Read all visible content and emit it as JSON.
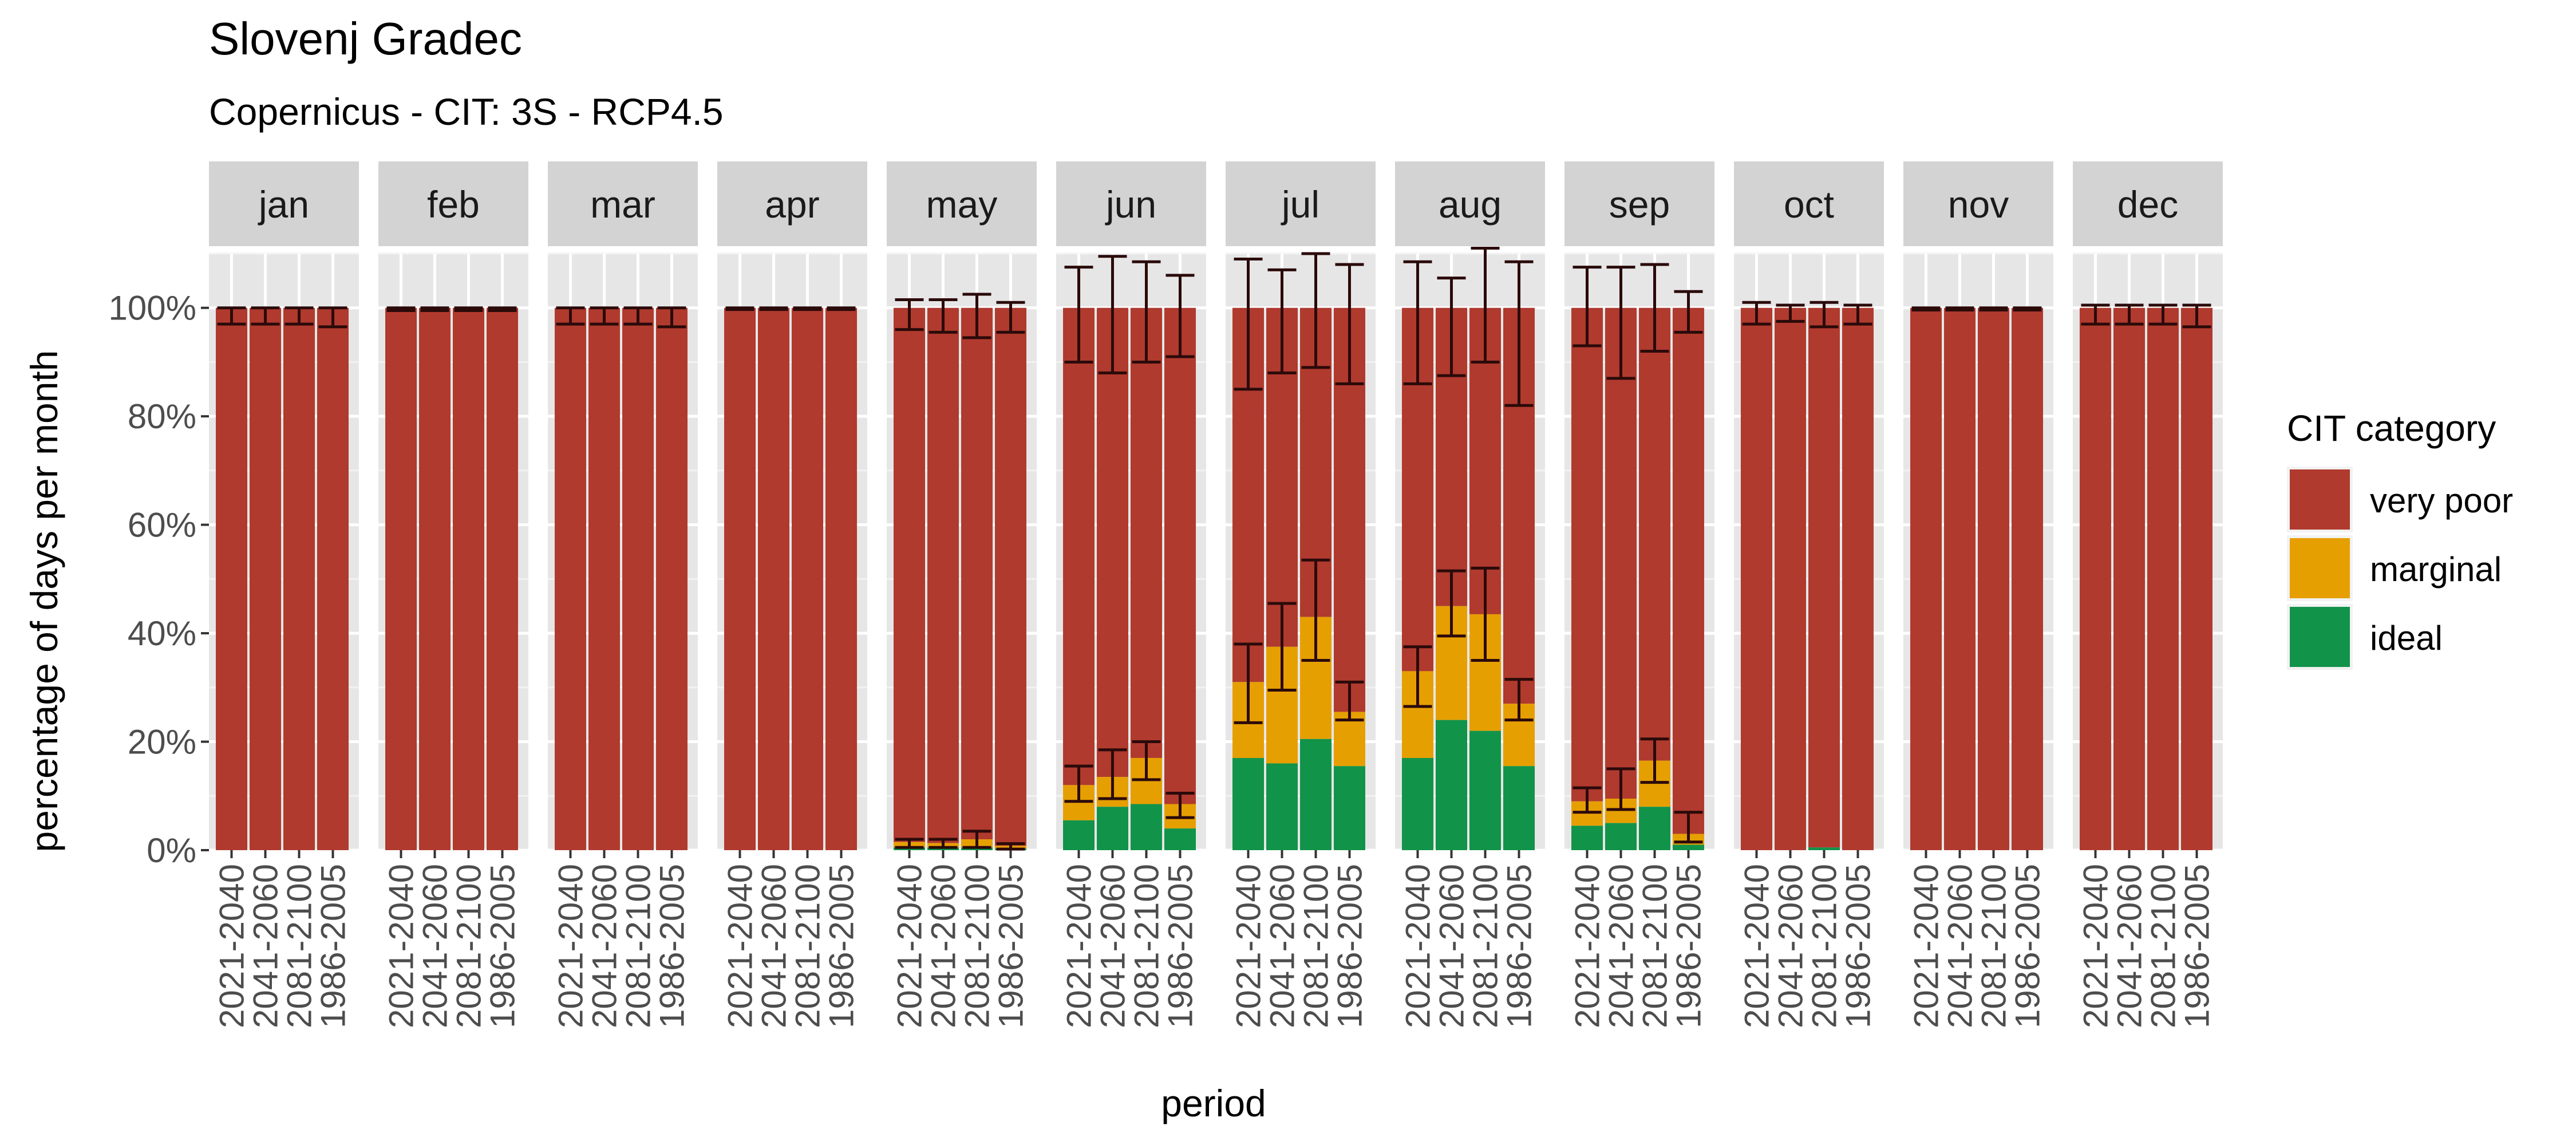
{
  "chart_data": {
    "type": "bar",
    "stacked": true,
    "faceted": true,
    "title": "Slovenj Gradec",
    "subtitle": "Copernicus - CIT: 3S - RCP4.5",
    "xlabel": "period",
    "ylabel": "percentage of days per month",
    "ylim": [
      0,
      110
    ],
    "y_ticks": [
      "0%",
      "20%",
      "40%",
      "60%",
      "80%",
      "100%"
    ],
    "grid": true,
    "legend": {
      "title": "CIT category",
      "position": "right",
      "entries": [
        "very poor",
        "marginal",
        "ideal"
      ]
    },
    "colors": {
      "very poor": "#B03A2E",
      "marginal": "#E69F00",
      "ideal": "#12934A",
      "errorbar": "#2b0a0a",
      "panel": "#E6E6E6",
      "strip": "#D3D3D3"
    },
    "categories": [
      "2021-2040",
      "2041-2060",
      "2081-2100",
      "1986-2005"
    ],
    "panels": [
      {
        "month": "jan",
        "ideal": [
          0,
          0,
          0,
          0
        ],
        "marginal": [
          0,
          0,
          0,
          0
        ],
        "errbars": [
          [
            97,
            100
          ],
          [
            97,
            100
          ],
          [
            97,
            100
          ],
          [
            96.5,
            100
          ]
        ]
      },
      {
        "month": "feb",
        "ideal": [
          0,
          0,
          0,
          0
        ],
        "marginal": [
          0,
          0,
          0,
          0
        ],
        "errbars": [
          [
            99.5,
            100
          ],
          [
            99.5,
            100
          ],
          [
            99.5,
            100
          ],
          [
            99.5,
            100
          ]
        ]
      },
      {
        "month": "mar",
        "ideal": [
          0,
          0,
          0,
          0
        ],
        "marginal": [
          0,
          0,
          0,
          0
        ],
        "errbars": [
          [
            97,
            100
          ],
          [
            97,
            100
          ],
          [
            97,
            100
          ],
          [
            96.5,
            100
          ]
        ]
      },
      {
        "month": "apr",
        "ideal": [
          0,
          0,
          0,
          0
        ],
        "marginal": [
          0,
          0,
          0,
          0
        ],
        "errbars": [
          [
            99.7,
            100
          ],
          [
            99.7,
            100
          ],
          [
            99.7,
            100
          ],
          [
            99.7,
            100
          ]
        ]
      },
      {
        "month": "may",
        "ideal": [
          0.5,
          0.5,
          0.5,
          0.3
        ],
        "marginal": [
          1.0,
          0.8,
          1.5,
          0.5
        ],
        "errbars": [
          [
            96,
            101.5
          ],
          [
            95.5,
            101.5
          ],
          [
            94.5,
            102.5
          ],
          [
            95.5,
            101
          ]
        ],
        "lowbars": [
          [
            0.5,
            2
          ],
          [
            0.5,
            2
          ],
          [
            0.5,
            3.5
          ],
          [
            0.2,
            1.2
          ]
        ]
      },
      {
        "month": "jun",
        "ideal": [
          5.5,
          8,
          8.5,
          4
        ],
        "marginal": [
          6.5,
          5.5,
          8.5,
          4.5
        ],
        "errbars": [
          [
            90,
            107.5
          ],
          [
            88,
            109.5
          ],
          [
            90,
            108.5
          ],
          [
            91,
            106
          ]
        ],
        "lowbars": [
          [
            9,
            15.5
          ],
          [
            9.5,
            18.5
          ],
          [
            13,
            20
          ],
          [
            6,
            10.5
          ]
        ]
      },
      {
        "month": "jul",
        "ideal": [
          17,
          16,
          20.5,
          15.5
        ],
        "marginal": [
          14,
          21.5,
          22.5,
          10
        ],
        "errbars": [
          [
            85,
            109
          ],
          [
            88,
            107
          ],
          [
            89,
            110
          ],
          [
            86,
            108
          ]
        ],
        "lowbars": [
          [
            23.5,
            38
          ],
          [
            29.5,
            45.5
          ],
          [
            35,
            53.5
          ],
          [
            24,
            31
          ]
        ]
      },
      {
        "month": "aug",
        "ideal": [
          17,
          24,
          22,
          15.5
        ],
        "marginal": [
          16,
          21,
          21.5,
          11.5
        ],
        "errbars": [
          [
            86,
            108.5
          ],
          [
            87.5,
            105.5
          ],
          [
            90,
            111
          ],
          [
            82,
            108.5
          ]
        ],
        "lowbars": [
          [
            26.5,
            37.5
          ],
          [
            39.5,
            51.5
          ],
          [
            35,
            52
          ],
          [
            24,
            31.5
          ]
        ]
      },
      {
        "month": "sep",
        "ideal": [
          4.5,
          5,
          8,
          1
        ],
        "marginal": [
          4.5,
          4.5,
          8.5,
          2
        ],
        "errbars": [
          [
            93,
            107.5
          ],
          [
            87,
            107.5
          ],
          [
            92,
            108
          ],
          [
            95.5,
            103
          ]
        ],
        "lowbars": [
          [
            7,
            11.5
          ],
          [
            7.5,
            15
          ],
          [
            12.5,
            20.5
          ],
          [
            1.5,
            7
          ]
        ]
      },
      {
        "month": "oct",
        "ideal": [
          0,
          0,
          0.5,
          0
        ],
        "marginal": [
          0,
          0,
          0,
          0
        ],
        "errbars": [
          [
            97,
            101
          ],
          [
            97.5,
            100.5
          ],
          [
            96.5,
            101
          ],
          [
            97,
            100.5
          ]
        ]
      },
      {
        "month": "nov",
        "ideal": [
          0,
          0,
          0,
          0
        ],
        "marginal": [
          0,
          0,
          0,
          0
        ],
        "errbars": [
          [
            99.6,
            100
          ],
          [
            99.6,
            100
          ],
          [
            99.6,
            100
          ],
          [
            99.6,
            100
          ]
        ]
      },
      {
        "month": "dec",
        "ideal": [
          0,
          0,
          0,
          0
        ],
        "marginal": [
          0,
          0,
          0,
          0
        ],
        "errbars": [
          [
            97,
            100.5
          ],
          [
            97,
            100.5
          ],
          [
            97,
            100.5
          ],
          [
            96.5,
            100.5
          ]
        ]
      }
    ]
  }
}
